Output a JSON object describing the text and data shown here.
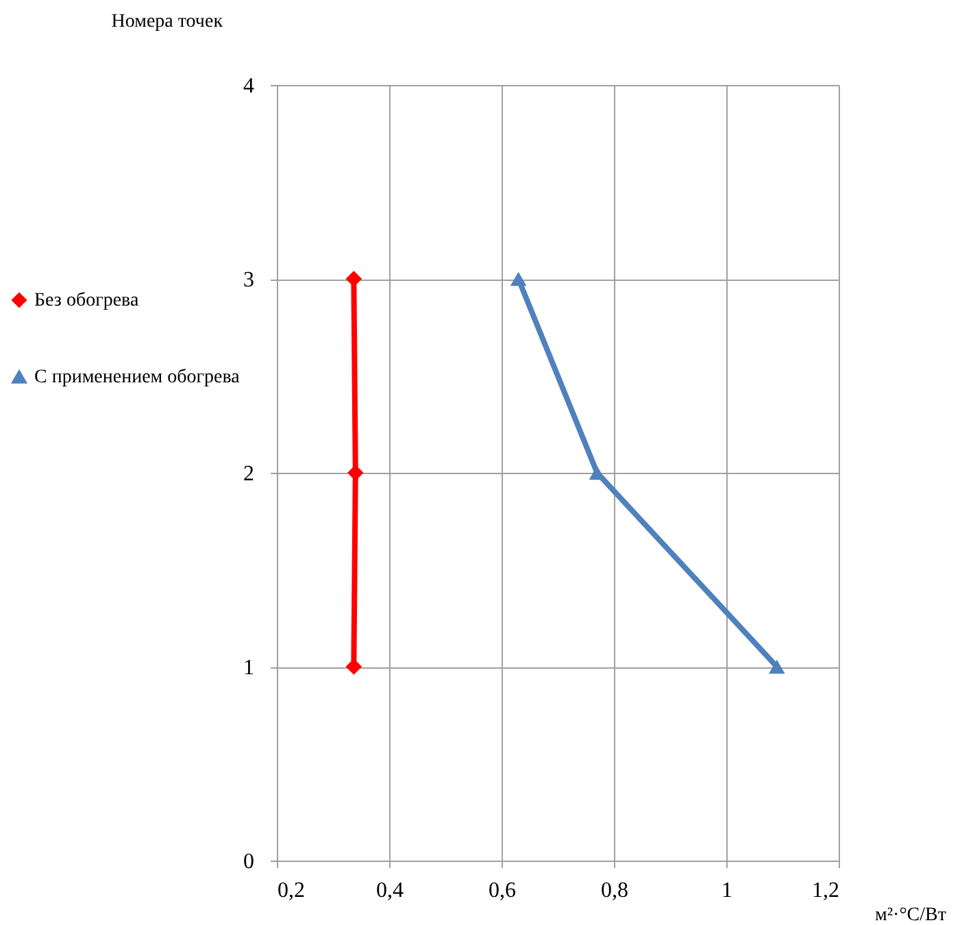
{
  "chart_data": {
    "type": "line",
    "ylabel": "Номера точек",
    "xlabel": "м²·°С/Вт",
    "xlim": [
      0.2,
      1.2
    ],
    "xticks": [
      {
        "value": 0.2,
        "label": "0,2"
      },
      {
        "value": 0.4,
        "label": "0,4"
      },
      {
        "value": 0.6,
        "label": "0,6"
      },
      {
        "value": 0.8,
        "label": "0,8"
      },
      {
        "value": 1,
        "label": "1"
      },
      {
        "value": 1.2,
        "label": "1,2"
      }
    ],
    "ylim": [
      0,
      4
    ],
    "yticks": [
      0,
      1,
      2,
      3,
      4
    ],
    "grid": true,
    "legend": "left",
    "line_style": "solid",
    "series": [
      {
        "name": "Без обогрева",
        "color": "#ff0000",
        "marker": "diamond",
        "x": [
          0.337,
          0.34,
          0.337
        ],
        "values": [
          1,
          2,
          3
        ]
      },
      {
        "name": "С применением обогрева",
        "color": "#4f81bd",
        "marker": "triangle",
        "x": [
          1.09,
          0.77,
          0.63
        ],
        "values": [
          1,
          2,
          3
        ]
      }
    ]
  }
}
